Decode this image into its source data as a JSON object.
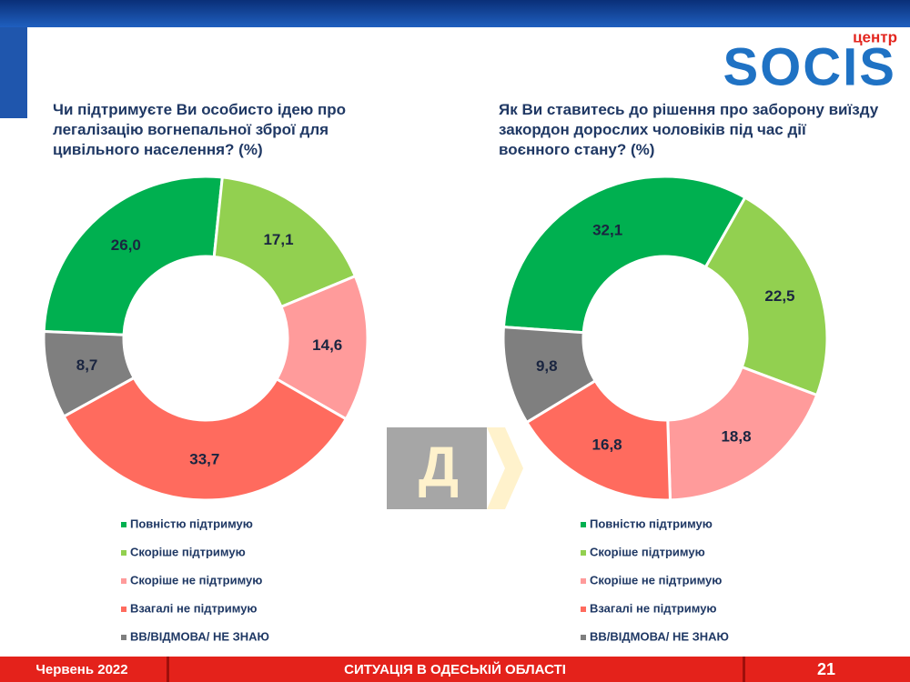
{
  "header": {
    "logo_small": "центр",
    "logo": "SOCIS"
  },
  "badge": "Д",
  "chart_data": [
    {
      "type": "donut",
      "title": "Чи підтримуєте Ви особисто ідею про легалізацію вогнепальної зброї для цивільного населення? (%)",
      "categories": [
        "Повністю підтримую",
        "Скоріше підтримую",
        "Скоріше не підтримую",
        "Взагалі не підтримую",
        "ВВ/ВІДМОВА/ НЕ ЗНАЮ"
      ],
      "values": [
        26.0,
        17.1,
        14.6,
        33.7,
        8.7
      ],
      "value_labels": [
        "26,0",
        "17,1",
        "14,6",
        "33,7",
        "8,7"
      ],
      "colors": [
        "#00b050",
        "#92d050",
        "#ff9b9b",
        "#ff6b5e",
        "#7f7f7f"
      ]
    },
    {
      "type": "donut",
      "title": "Як Ви ставитесь до рішення про заборону виїзду закордон дорослих чоловіків під час дії воєнного стану? (%)",
      "categories": [
        "Повністю підтримую",
        "Скоріше підтримую",
        "Скоріше не підтримую",
        "Взагалі не підтримую",
        "ВВ/ВІДМОВА/ НЕ ЗНАЮ"
      ],
      "values": [
        32.1,
        22.5,
        18.8,
        16.8,
        9.8
      ],
      "value_labels": [
        "32,1",
        "22,5",
        "18,8",
        "16,8",
        "9,8"
      ],
      "colors": [
        "#00b050",
        "#92d050",
        "#ff9b9b",
        "#ff6b5e",
        "#7f7f7f"
      ]
    }
  ],
  "footer": {
    "date": "Червень 2022",
    "title": "СИТУАЦІЯ В ОДЕСЬКІЙ ОБЛАСТІ",
    "page": "21"
  }
}
